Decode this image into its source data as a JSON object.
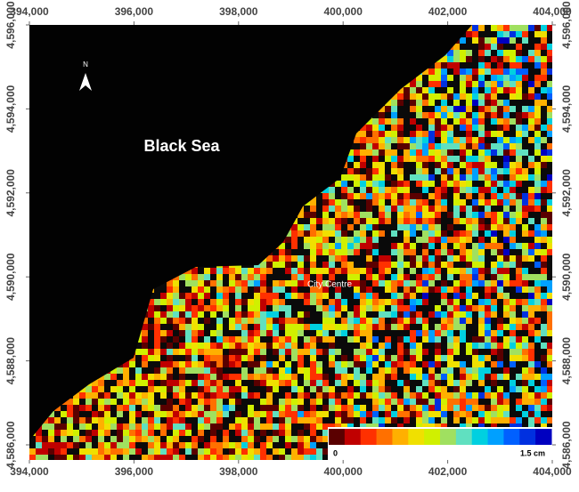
{
  "map": {
    "title": "Black Sea",
    "place_label": "City Centre",
    "north_label": "N",
    "xlim": [
      394000,
      404000
    ],
    "ylim": [
      4585640,
      4596000
    ],
    "xticks": [
      {
        "value": 394000,
        "label": "394,000"
      },
      {
        "value": 396000,
        "label": "396,000"
      },
      {
        "value": 398000,
        "label": "398,000"
      },
      {
        "value": 400000,
        "label": "400,000"
      },
      {
        "value": 402000,
        "label": "402,000"
      },
      {
        "value": 404000,
        "label": "404,000"
      }
    ],
    "yticks": [
      {
        "value": 4586000,
        "label": "4,586,000"
      },
      {
        "value": 4588000,
        "label": "4,588,000"
      },
      {
        "value": 4590000,
        "label": "4,590,000"
      },
      {
        "value": 4592000,
        "label": "4,592,000"
      },
      {
        "value": 4594000,
        "label": "4,594,000"
      },
      {
        "value": 4596000,
        "label": "4,596,000"
      }
    ],
    "colorbar": {
      "colors": [
        "#5a0000",
        "#c00000",
        "#ff3000",
        "#ff7000",
        "#ffb000",
        "#f0e000",
        "#d0f000",
        "#a0e060",
        "#60e0c0",
        "#00d0e0",
        "#00a0ff",
        "#0060ff",
        "#0030e0",
        "#0000c0"
      ],
      "labels": [
        "0",
        "1.5 cm"
      ]
    }
  }
}
